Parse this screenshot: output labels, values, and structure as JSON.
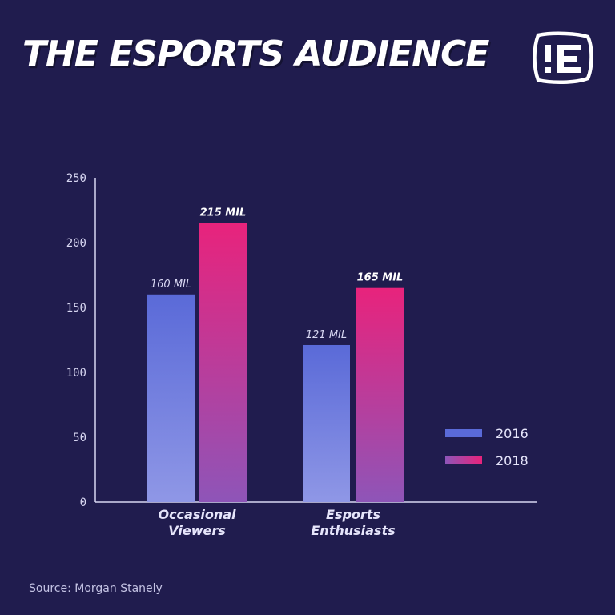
{
  "title": "THE ESPORTS AUDIENCE",
  "logo": {
    "icon": "esports-logo-icon"
  },
  "source": "Source:  Morgan Stanely",
  "colors": {
    "background": "#201c4e",
    "series_2016_top": "#5a6ad8",
    "series_2016_bottom": "#8f97e6",
    "series_2018_top": "#e8237c",
    "series_2018_bottom": "#8e55b8",
    "axis": "#d8d7f2"
  },
  "chart_data": {
    "type": "bar",
    "categories": [
      [
        "Occasional",
        "Viewers"
      ],
      [
        "Esports",
        "Enthusiasts"
      ]
    ],
    "series": [
      {
        "name": "2016",
        "values": [
          160,
          121
        ],
        "labels": [
          "160 MIL",
          "121 MIL"
        ]
      },
      {
        "name": "2018",
        "values": [
          215,
          165
        ],
        "labels": [
          "215 MIL",
          "165  MIL"
        ]
      }
    ],
    "ylim": [
      0,
      250
    ],
    "yticks": [
      "0",
      "50",
      "100",
      "150",
      "200",
      "250"
    ],
    "grid": false,
    "legend_position": "right"
  }
}
